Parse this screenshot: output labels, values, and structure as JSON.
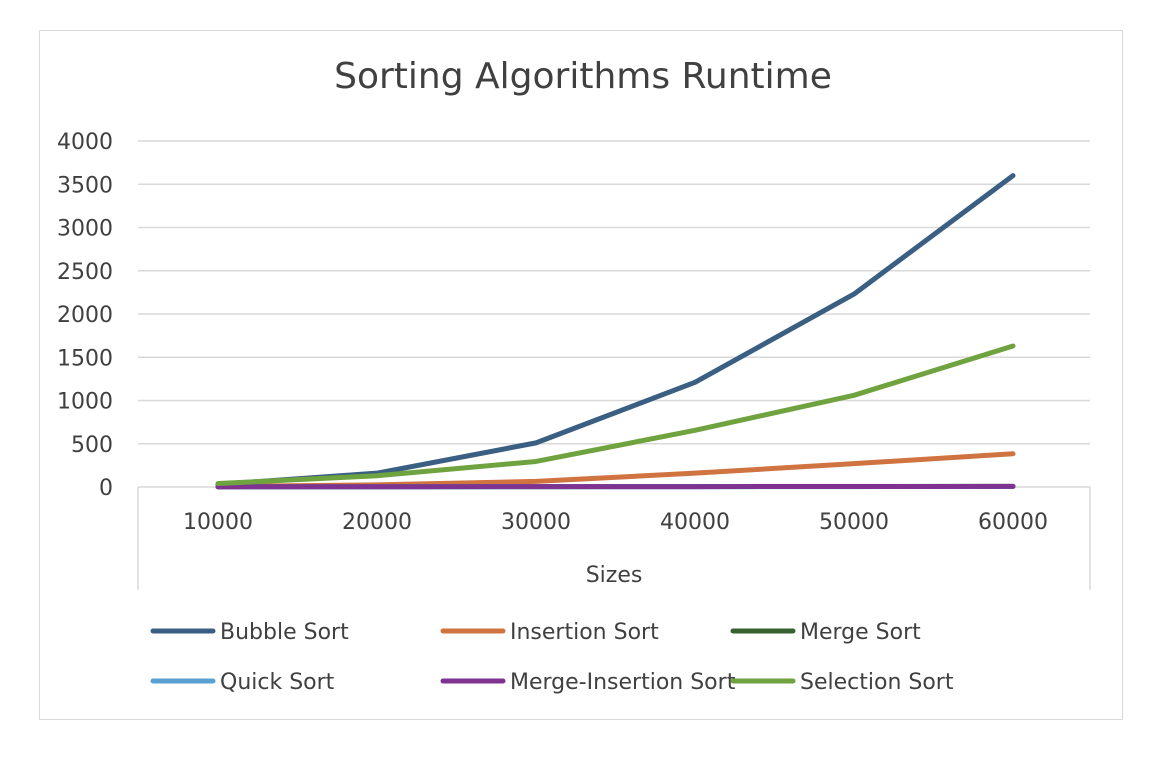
{
  "chart_data": {
    "type": "line",
    "title": "Sorting Algorithms Runtime",
    "xlabel": "Sizes",
    "ylabel": "",
    "categories": [
      "10000",
      "20000",
      "30000",
      "40000",
      "50000",
      "60000"
    ],
    "ylim": [
      0,
      4000
    ],
    "yticks": [
      "0",
      "500",
      "1000",
      "1500",
      "2000",
      "2500",
      "3000",
      "3500",
      "4000"
    ],
    "grid": true,
    "legend_position": "bottom",
    "series": [
      {
        "name": "Bubble Sort",
        "color": "#3a5f82",
        "values": [
          30,
          160,
          510,
          1210,
          2230,
          3600
        ]
      },
      {
        "name": "Insertion Sort",
        "color": "#cf7440",
        "values": [
          5,
          25,
          65,
          160,
          270,
          385
        ]
      },
      {
        "name": "Merge Sort",
        "color": "#37622f",
        "values": [
          2,
          3,
          4,
          5,
          6,
          7
        ]
      },
      {
        "name": "Quick Sort",
        "color": "#5aa0d2",
        "values": [
          1,
          2,
          3,
          4,
          5,
          6
        ]
      },
      {
        "name": "Merge-Insertion Sort",
        "color": "#7e3391",
        "values": [
          2,
          3,
          4,
          5,
          6,
          7
        ]
      },
      {
        "name": "Selection Sort",
        "color": "#6ea33f",
        "values": [
          40,
          130,
          295,
          655,
          1060,
          1630
        ]
      }
    ]
  }
}
